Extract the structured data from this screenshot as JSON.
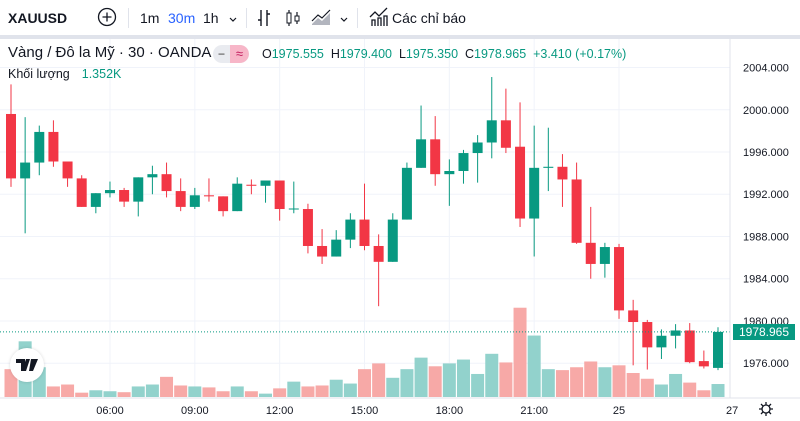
{
  "toolbar": {
    "symbol": "XAUUSD",
    "add_icon": "plus-circle-icon",
    "intervals": [
      "1m",
      "30m",
      "1h"
    ],
    "chart_types": [
      "bar-chart-icon",
      "candles-icon",
      "area-chart-icon"
    ],
    "indicators_label": "Các chỉ báo"
  },
  "legend": {
    "title": "Vàng / Đô la Mỹ · 30 · OANDA",
    "pill_minus": "−",
    "pill_approx": "≈",
    "O_label": "O",
    "O": "1975.555",
    "H_label": "H",
    "H": "1979.400",
    "L_label": "L",
    "L": "1975.350",
    "C_label": "C",
    "C": "1978.965",
    "change": "+3.410 (+0.17%)",
    "volume_label": "Khối lượng",
    "volume_value": "1.352K"
  },
  "last_price_label": "1978.965",
  "logo": "TV",
  "colors": {
    "up": "#089981",
    "down": "#f23645",
    "vol_up": "#92d2cc",
    "vol_down": "#f7a9a7",
    "grid": "#f0f3fa"
  },
  "chart_data": {
    "type": "candlestick",
    "interval": "30",
    "price_ticks": [
      "2004.000",
      "2000.000",
      "1996.000",
      "1992.000",
      "1988.000",
      "1984.000",
      "1980.000",
      "1976.000"
    ],
    "ylim": [
      1972.8,
      2006.7
    ],
    "time_ticks": [
      {
        "label": "06:00",
        "index": 7
      },
      {
        "label": "09:00",
        "index": 13
      },
      {
        "label": "12:00",
        "index": 19
      },
      {
        "label": "15:00",
        "index": 25
      },
      {
        "label": "18:00",
        "index": 31
      },
      {
        "label": "21:00",
        "index": 37
      },
      {
        "label": "25",
        "index": 43
      },
      {
        "label": "27",
        "index": 51
      }
    ],
    "grid": true,
    "last_price": 1978.965,
    "candles": [
      [
        1999.6,
        2002.4,
        1992.7,
        1993.5,
        2.9
      ],
      [
        1993.5,
        1999.3,
        1988.3,
        1995.0,
        5.8
      ],
      [
        1995.0,
        1998.5,
        1993.8,
        1997.9,
        3.1
      ],
      [
        1997.9,
        1999.0,
        1994.6,
        1995.1,
        1.1
      ],
      [
        1995.1,
        1995.1,
        1992.7,
        1993.5,
        1.3
      ],
      [
        1993.5,
        1993.8,
        1990.8,
        1990.8,
        0.45
      ],
      [
        1990.8,
        1992.1,
        1990.2,
        1992.1,
        0.7
      ],
      [
        1992.1,
        1993.2,
        1991.7,
        1992.4,
        0.6
      ],
      [
        1992.4,
        1992.6,
        1990.8,
        1991.3,
        0.5
      ],
      [
        1991.3,
        1993.6,
        1989.9,
        1993.6,
        1.1
      ],
      [
        1993.6,
        1994.7,
        1992.0,
        1993.9,
        1.3
      ],
      [
        1993.9,
        1995.0,
        1991.7,
        1992.3,
        2.1
      ],
      [
        1992.3,
        1993.5,
        1990.4,
        1990.8,
        1.2
      ],
      [
        1990.8,
        1992.6,
        1990.6,
        1991.9,
        1.1
      ],
      [
        1991.9,
        1993.5,
        1991.3,
        1991.8,
        1.0
      ],
      [
        1991.8,
        1991.8,
        1989.9,
        1990.4,
        0.6
      ],
      [
        1990.4,
        1993.6,
        1990.4,
        1993.0,
        1.1
      ],
      [
        1992.9,
        1993.4,
        1992.0,
        1992.8,
        0.6
      ],
      [
        1992.8,
        1993.3,
        1991.2,
        1993.3,
        0.35
      ],
      [
        1993.3,
        1993.3,
        1989.5,
        1990.6,
        0.9
      ],
      [
        1990.6,
        1993.2,
        1990.2,
        1990.65,
        1.6
      ],
      [
        1990.6,
        1991.1,
        1986.4,
        1987.1,
        1.1
      ],
      [
        1987.1,
        1988.7,
        1985.4,
        1986.1,
        1.2
      ],
      [
        1986.1,
        1988.6,
        1986.1,
        1987.7,
        1.8
      ],
      [
        1987.7,
        1990.2,
        1986.9,
        1989.6,
        1.4
      ],
      [
        1989.6,
        1993.0,
        1986.7,
        1987.1,
        2.9
      ],
      [
        1987.1,
        1988.2,
        1981.4,
        1985.6,
        3.5
      ],
      [
        1985.6,
        1990.2,
        1985.6,
        1989.6,
        2.0
      ],
      [
        1989.6,
        1995.0,
        1989.6,
        1994.5,
        2.9
      ],
      [
        1994.5,
        2000.4,
        1994.5,
        1997.2,
        4.1
      ],
      [
        1997.2,
        1999.4,
        1992.8,
        1993.9,
        3.2
      ],
      [
        1993.9,
        1995.3,
        1990.9,
        1994.2,
        3.5
      ],
      [
        1994.2,
        1996.2,
        1993.0,
        1995.9,
        3.9
      ],
      [
        1995.9,
        1997.6,
        1993.1,
        1996.9,
        2.4
      ],
      [
        1996.9,
        2003.1,
        1995.4,
        1999.0,
        4.5
      ],
      [
        1999.0,
        2002.0,
        1995.9,
        1996.4,
        3.6
      ],
      [
        1996.5,
        2000.7,
        1988.9,
        1989.7,
        9.3
      ],
      [
        1989.7,
        1998.5,
        1986.1,
        1994.5,
        6.4
      ],
      [
        1994.5,
        1998.3,
        1992.3,
        1994.6,
        2.9
      ],
      [
        1994.6,
        1995.8,
        1990.8,
        1993.4,
        2.8
      ],
      [
        1993.4,
        1995.0,
        1987.3,
        1987.4,
        3.1
      ],
      [
        1987.4,
        1990.8,
        1984.0,
        1985.4,
        3.7
      ],
      [
        1985.4,
        1987.4,
        1984.1,
        1987.0,
        3.1
      ],
      [
        1987.0,
        1987.3,
        1980.2,
        1981.0,
        3.3
      ],
      [
        1981.0,
        1982.0,
        1975.8,
        1979.9,
        2.5
      ],
      [
        1979.9,
        1980.1,
        1975.4,
        1977.5,
        1.9
      ],
      [
        1977.5,
        1979.2,
        1976.4,
        1978.6,
        1.3
      ],
      [
        1978.6,
        1979.7,
        1977.4,
        1979.1,
        2.4
      ],
      [
        1979.1,
        1979.8,
        1976.0,
        1976.1,
        1.5
      ],
      [
        1976.2,
        1977.2,
        1975.5,
        1975.7,
        0.7
      ],
      [
        1975.555,
        1979.4,
        1975.35,
        1978.965,
        1.352
      ]
    ],
    "candle_fields": [
      "open",
      "high",
      "low",
      "close",
      "volume_k"
    ]
  }
}
